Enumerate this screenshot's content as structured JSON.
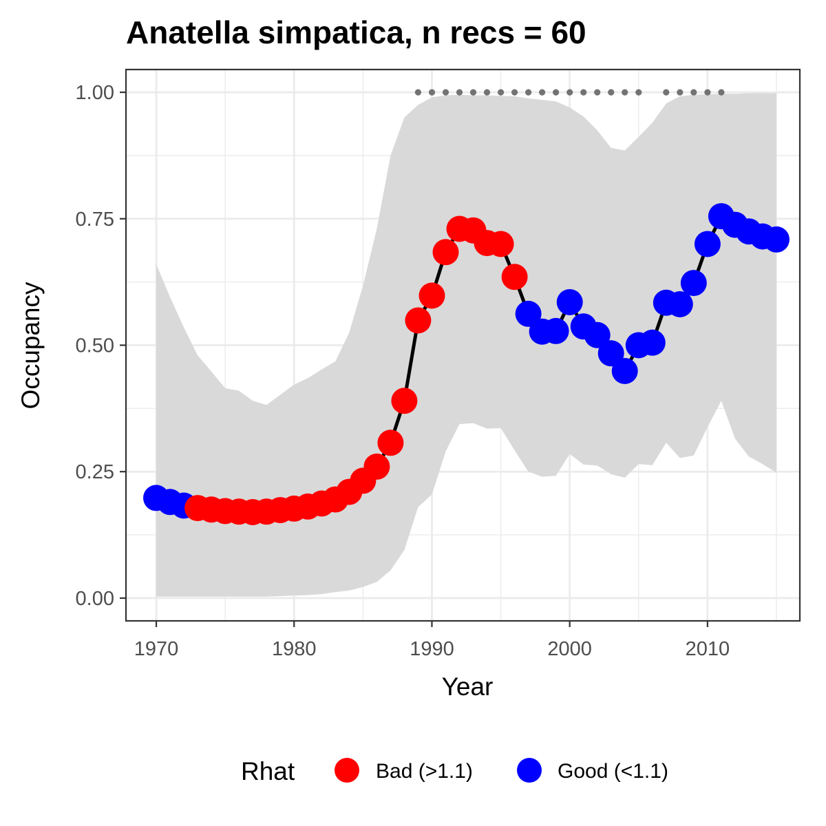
{
  "chart_data": {
    "type": "line",
    "title": "Anatella simpatica, n recs = 60",
    "xlabel": "Year",
    "ylabel": "Occupancy",
    "xlim": [
      1967.8,
      2016.7
    ],
    "ylim": [
      -0.045,
      1.045
    ],
    "x_ticks": [
      1970,
      1980,
      1990,
      2000,
      2010
    ],
    "x_tick_labels": [
      "1970",
      "1980",
      "1990",
      "2000",
      "2010"
    ],
    "y_ticks": [
      0,
      0.25,
      0.5,
      0.75,
      1.0
    ],
    "y_tick_labels": [
      "0.00",
      "0.25",
      "0.50",
      "0.75",
      "1.00"
    ],
    "grid": true,
    "legend": {
      "title": "Rhat",
      "position": "bottom",
      "entries": [
        {
          "label": "Bad (>1.1)",
          "color": "#ff0000"
        },
        {
          "label": "Good (<1.1)",
          "color": "#0000ff"
        }
      ]
    },
    "colors": {
      "bad": "#ff0000",
      "good": "#0000ff",
      "line": "#000000",
      "ribbon": "#d9d9d9",
      "record_dots": "#737373"
    },
    "series": [
      {
        "x": [
          1970,
          1971,
          1972,
          1973,
          1974,
          1975,
          1976,
          1977,
          1978,
          1979,
          1980,
          1981,
          1982,
          1983,
          1984,
          1985,
          1986,
          1987,
          1988,
          1989,
          1990,
          1991,
          1992,
          1993,
          1994,
          1995,
          1996,
          1997,
          1998,
          1999,
          2000,
          2001,
          2002,
          2003,
          2004,
          2005,
          2006,
          2007,
          2008,
          2009,
          2010,
          2011,
          2012,
          2013,
          2014,
          2015
        ],
        "y": [
          0.198,
          0.19,
          0.183,
          0.178,
          0.175,
          0.172,
          0.171,
          0.17,
          0.171,
          0.174,
          0.177,
          0.181,
          0.187,
          0.195,
          0.21,
          0.232,
          0.26,
          0.307,
          0.39,
          0.549,
          0.598,
          0.684,
          0.73,
          0.727,
          0.702,
          0.7,
          0.635,
          0.562,
          0.527,
          0.528,
          0.585,
          0.537,
          0.52,
          0.484,
          0.449,
          0.5,
          0.505,
          0.584,
          0.581,
          0.623,
          0.7,
          0.755,
          0.738,
          0.725,
          0.715,
          0.709
        ],
        "rhat": [
          "Good",
          "Good",
          "Good",
          "Bad",
          "Bad",
          "Bad",
          "Bad",
          "Bad",
          "Bad",
          "Bad",
          "Bad",
          "Bad",
          "Bad",
          "Bad",
          "Bad",
          "Bad",
          "Bad",
          "Bad",
          "Bad",
          "Bad",
          "Bad",
          "Bad",
          "Bad",
          "Bad",
          "Bad",
          "Bad",
          "Bad",
          "Good",
          "Good",
          "Good",
          "Good",
          "Good",
          "Good",
          "Good",
          "Good",
          "Good",
          "Good",
          "Good",
          "Good",
          "Good",
          "Good",
          "Good",
          "Good",
          "Good",
          "Good",
          "Good"
        ],
        "lower": [
          0.003,
          0.003,
          0.003,
          0.003,
          0.003,
          0.003,
          0.003,
          0.003,
          0.003,
          0.004,
          0.005,
          0.006,
          0.008,
          0.012,
          0.015,
          0.022,
          0.032,
          0.055,
          0.095,
          0.18,
          0.205,
          0.29,
          0.344,
          0.346,
          0.335,
          0.336,
          0.292,
          0.25,
          0.24,
          0.242,
          0.285,
          0.264,
          0.262,
          0.245,
          0.238,
          0.265,
          0.263,
          0.307,
          0.277,
          0.282,
          0.338,
          0.39,
          0.315,
          0.28,
          0.265,
          0.248
        ],
        "upper": [
          0.66,
          0.595,
          0.535,
          0.48,
          0.448,
          0.415,
          0.41,
          0.39,
          0.382,
          0.402,
          0.422,
          0.435,
          0.452,
          0.468,
          0.525,
          0.618,
          0.73,
          0.875,
          0.95,
          0.975,
          0.99,
          0.994,
          0.995,
          0.994,
          0.994,
          0.993,
          0.992,
          0.988,
          0.985,
          0.982,
          0.97,
          0.952,
          0.925,
          0.89,
          0.885,
          0.912,
          0.94,
          0.978,
          0.992,
          0.995,
          0.996,
          0.997,
          0.997,
          0.998,
          0.998,
          0.998
        ]
      }
    ],
    "record_years": [
      1989,
      1990,
      1991,
      1992,
      1993,
      1994,
      1995,
      1996,
      1997,
      1998,
      1999,
      2000,
      2001,
      2002,
      2003,
      2004,
      2005,
      2007,
      2008,
      2009,
      2010,
      2011
    ],
    "record_y": 1.0
  }
}
